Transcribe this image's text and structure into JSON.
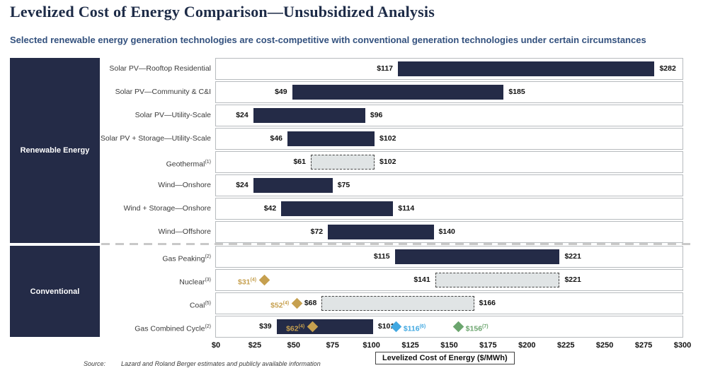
{
  "header": {
    "title": "Levelized Cost of Energy Comparison—Unsubsidized Analysis",
    "subtitle": "Selected renewable energy generation technologies are cost-competitive with conventional generation technologies under certain circumstances"
  },
  "sidebar": {
    "renewable_label": "Renewable Energy",
    "conventional_label": "Conventional"
  },
  "chart_data": {
    "type": "bar",
    "orientation": "horizontal-range",
    "title": "Levelized Cost of Energy Comparison—Unsubsidized Analysis",
    "xlabel": "Levelized Cost of Energy ($/MWh)",
    "xlim": [
      0,
      300
    ],
    "x_ticks": [
      0,
      25,
      50,
      75,
      100,
      125,
      150,
      175,
      200,
      225,
      250,
      275,
      300
    ],
    "x_tick_labels": [
      "$0",
      "$25",
      "$50",
      "$75",
      "$100",
      "$125",
      "$150",
      "$175",
      "$200",
      "$225",
      "$250",
      "$275",
      "$300"
    ],
    "grid": false,
    "rows": [
      {
        "group": "renewable",
        "label": "Solar PV—Rooftop Residential",
        "sup": "",
        "bar_style": "solid",
        "min": 117,
        "max": 282,
        "min_label": "$117",
        "max_label": "$282",
        "markers": []
      },
      {
        "group": "renewable",
        "label": "Solar PV—Community & C&I",
        "sup": "",
        "bar_style": "solid",
        "min": 49,
        "max": 185,
        "min_label": "$49",
        "max_label": "$185",
        "markers": []
      },
      {
        "group": "renewable",
        "label": "Solar PV—Utility-Scale",
        "sup": "",
        "bar_style": "solid",
        "min": 24,
        "max": 96,
        "min_label": "$24",
        "max_label": "$96",
        "markers": []
      },
      {
        "group": "renewable",
        "label": "Solar PV + Storage—Utility-Scale",
        "sup": "",
        "bar_style": "solid",
        "min": 46,
        "max": 102,
        "min_label": "$46",
        "max_label": "$102",
        "markers": []
      },
      {
        "group": "renewable",
        "label": "Geothermal",
        "sup": "(1)",
        "bar_style": "dashed",
        "min": 61,
        "max": 102,
        "min_label": "$61",
        "max_label": "$102",
        "markers": []
      },
      {
        "group": "renewable",
        "label": "Wind—Onshore",
        "sup": "",
        "bar_style": "solid",
        "min": 24,
        "max": 75,
        "min_label": "$24",
        "max_label": "$75",
        "markers": []
      },
      {
        "group": "renewable",
        "label": "Wind + Storage—Onshore",
        "sup": "",
        "bar_style": "solid",
        "min": 42,
        "max": 114,
        "min_label": "$42",
        "max_label": "$114",
        "markers": []
      },
      {
        "group": "renewable",
        "label": "Wind—Offshore",
        "sup": "",
        "bar_style": "solid",
        "min": 72,
        "max": 140,
        "min_label": "$72",
        "max_label": "$140",
        "markers": []
      },
      {
        "group": "conventional",
        "label": "Gas Peaking",
        "sup": "(2)",
        "bar_style": "solid",
        "min": 115,
        "max": 221,
        "min_label": "$115",
        "max_label": "$221",
        "markers": []
      },
      {
        "group": "conventional",
        "label": "Nuclear",
        "sup": "(3)",
        "bar_style": "dashed",
        "min": 141,
        "max": 221,
        "min_label": "$141",
        "max_label": "$221",
        "markers": [
          {
            "value": 31,
            "label": "$31",
            "sup": "(4)",
            "color": "gold",
            "side": "left"
          }
        ]
      },
      {
        "group": "conventional",
        "label": "Coal",
        "sup": "(5)",
        "bar_style": "dashed",
        "min": 68,
        "max": 166,
        "min_label": "$68",
        "max_label": "$166",
        "markers": [
          {
            "value": 52,
            "label": "$52",
            "sup": "(4)",
            "color": "gold",
            "side": "left"
          }
        ]
      },
      {
        "group": "conventional",
        "label": "Gas Combined Cycle",
        "sup": "(2)",
        "bar_style": "solid",
        "min": 39,
        "max": 101,
        "min_label": "$39",
        "max_label": "$101",
        "inner_marker": {
          "value": 62,
          "label": "$62",
          "sup": "(4)",
          "color": "gold"
        },
        "markers": [
          {
            "value": 116,
            "label": "$116",
            "sup": "(6)",
            "color": "blue",
            "side": "right"
          },
          {
            "value": 156,
            "label": "$156",
            "sup": "(7)",
            "color": "green",
            "side": "right"
          }
        ]
      }
    ]
  },
  "footer": {
    "source_label": "Source:",
    "source_text": "Lazard and Roland Berger estimates and publicly available information"
  },
  "colors": {
    "navy": "#242b47",
    "gold": "#c6a04f",
    "blue": "#41a8e1",
    "green": "#6ba56e",
    "dashed_fill": "#e0e4e5",
    "title": "#1d2b47",
    "subtitle": "#33517e"
  }
}
